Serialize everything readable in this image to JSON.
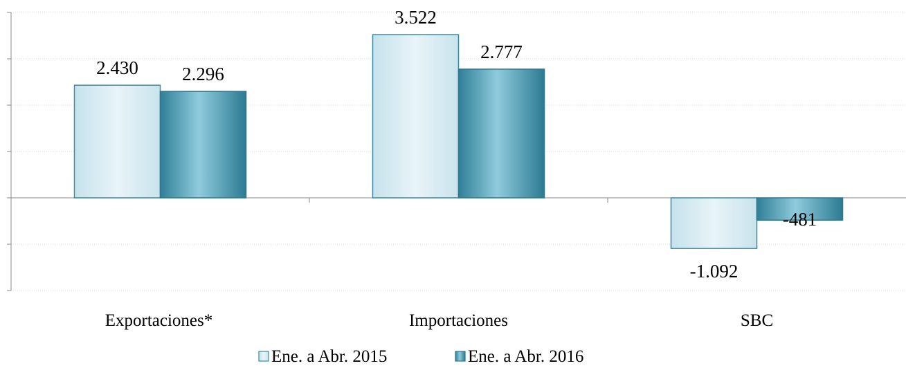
{
  "chart_data": {
    "type": "bar",
    "title": "",
    "xlabel": "",
    "ylabel": "",
    "categories": [
      "Exportaciones*",
      "Importaciones",
      "SBC"
    ],
    "series": [
      {
        "name": "Ene. a Abr. 2015",
        "values": [
          2430,
          3522,
          -1092
        ],
        "labels": [
          "2.430",
          "3.522",
          "-1.092"
        ],
        "color": "#dcecf2"
      },
      {
        "name": "Ene. a Abr. 2016",
        "values": [
          2296,
          2777,
          -481
        ],
        "labels": [
          "2.296",
          "2.777",
          "-481"
        ],
        "color": "#3f93aa"
      }
    ],
    "ylim": [
      -2000,
      4000
    ],
    "grid": true,
    "legend": "bottom-center"
  }
}
